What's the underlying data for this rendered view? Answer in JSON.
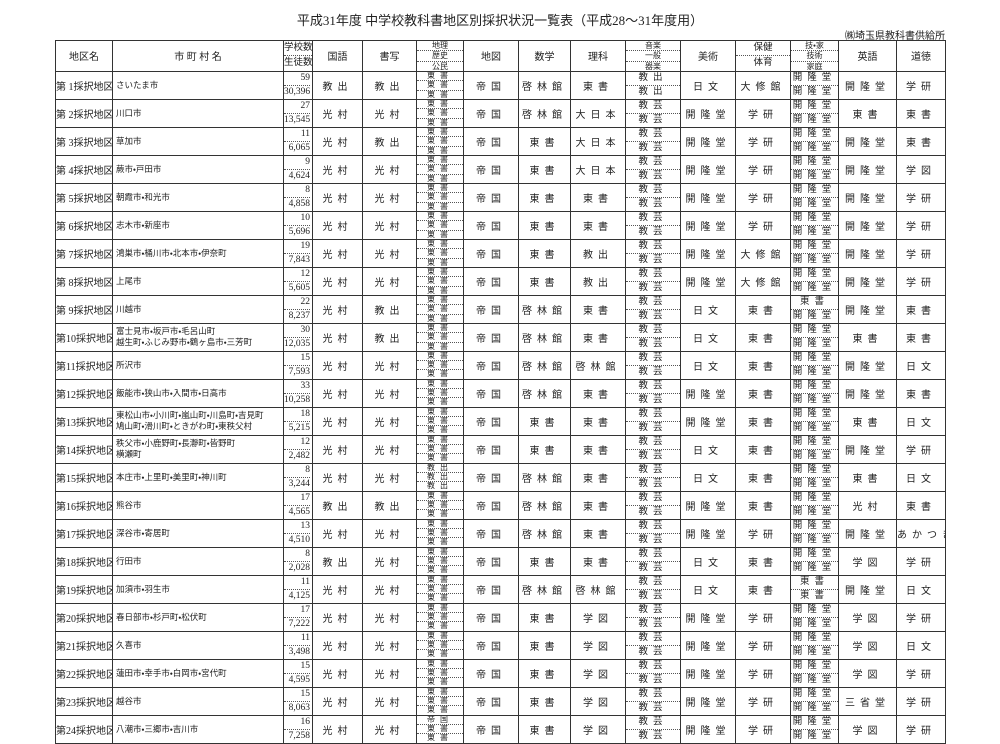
{
  "header": {
    "title": "平成31年度 中学校教科書地区別採択状況一覧表（平成28～31年度用）",
    "publisher": "㈱埼玉県教科書供給所",
    "columns": {
      "district": "地区名",
      "municipalities": "市 町 村 名",
      "schools": "学校数",
      "students": "生徒数",
      "japanese": "国語",
      "calligraphy": "書写",
      "social": [
        "地理",
        "歴史",
        "公民"
      ],
      "atlas": "地図",
      "math": "数学",
      "science": "理科",
      "music": "音楽",
      "music_sub": [
        "一般",
        "器楽"
      ],
      "art": "美術",
      "pe": [
        "保健",
        "体育"
      ],
      "tech_home": "技・家",
      "tech_home_sub": [
        "技術",
        "家庭"
      ],
      "english": "英語",
      "ethics": "道徳"
    }
  },
  "rows": [
    [
      "第 1採択地区",
      [
        "さいたま市"
      ],
      "59",
      "30,396",
      "教出",
      "教出",
      [
        "東書",
        "東書",
        "東書"
      ],
      "帝国",
      "啓林館",
      "東書",
      [
        "教出",
        "教出"
      ],
      "日文",
      "大修館",
      [
        "開隆堂",
        "開隆堂"
      ],
      "開隆堂",
      "学研"
    ],
    [
      "第 2採択地区",
      [
        "川口市"
      ],
      "27",
      "13,545",
      "光村",
      "光村",
      [
        "東書",
        "東書",
        "東書"
      ],
      "帝国",
      "啓林館",
      "大日本",
      [
        "教芸",
        "教芸"
      ],
      "開隆堂",
      "学研",
      [
        "開隆堂",
        "開隆堂"
      ],
      "東書",
      "東書"
    ],
    [
      "第 3採択地区",
      [
        "草加市"
      ],
      "11",
      "6,065",
      "光村",
      "教出",
      [
        "東書",
        "東書",
        "東書"
      ],
      "帝国",
      "東書",
      "大日本",
      [
        "教芸",
        "教芸"
      ],
      "開隆堂",
      "学研",
      [
        "開隆堂",
        "開隆堂"
      ],
      "開隆堂",
      "東書"
    ],
    [
      "第 4採択地区",
      [
        "蕨市・戸田市"
      ],
      "9",
      "4,624",
      "光村",
      "光村",
      [
        "東書",
        "東書",
        "東書"
      ],
      "帝国",
      "東書",
      "大日本",
      [
        "教芸",
        "教芸"
      ],
      "開隆堂",
      "学研",
      [
        "開隆堂",
        "開隆堂"
      ],
      "開隆堂",
      "学図"
    ],
    [
      "第 5採択地区",
      [
        "朝霞市・和光市"
      ],
      "8",
      "4,858",
      "光村",
      "光村",
      [
        "東書",
        "東書",
        "東書"
      ],
      "帝国",
      "東書",
      "東書",
      [
        "教芸",
        "教芸"
      ],
      "開隆堂",
      "学研",
      [
        "開隆堂",
        "開隆堂"
      ],
      "開隆堂",
      "学研"
    ],
    [
      "第 6採択地区",
      [
        "志木市・新座市"
      ],
      "10",
      "5,696",
      "光村",
      "光村",
      [
        "東書",
        "東書",
        "東書"
      ],
      "帝国",
      "東書",
      "東書",
      [
        "教芸",
        "教芸"
      ],
      "開隆堂",
      "学研",
      [
        "開隆堂",
        "開隆堂"
      ],
      "開隆堂",
      "学研"
    ],
    [
      "第 7採択地区",
      [
        "鴻巣市・桶川市・北本市・伊奈町"
      ],
      "19",
      "7,843",
      "光村",
      "光村",
      [
        "東書",
        "東書",
        "東書"
      ],
      "帝国",
      "東書",
      "教出",
      [
        "教芸",
        "教芸"
      ],
      "開隆堂",
      "大修館",
      [
        "開隆堂",
        "開隆堂"
      ],
      "開隆堂",
      "学研"
    ],
    [
      "第 8採択地区",
      [
        "上尾市"
      ],
      "12",
      "5,605",
      "光村",
      "光村",
      [
        "東書",
        "東書",
        "東書"
      ],
      "帝国",
      "東書",
      "教出",
      [
        "教芸",
        "教芸"
      ],
      "開隆堂",
      "大修館",
      [
        "開隆堂",
        "開隆堂"
      ],
      "開隆堂",
      "学研"
    ],
    [
      "第 9採択地区",
      [
        "川越市"
      ],
      "22",
      "8,237",
      "光村",
      "教出",
      [
        "東書",
        "東書",
        "東書"
      ],
      "帝国",
      "啓林館",
      "東書",
      [
        "教芸",
        "教芸"
      ],
      "日文",
      "東書",
      [
        "東書",
        "開隆堂"
      ],
      "開隆堂",
      "東書"
    ],
    [
      "第10採択地区",
      [
        "富士見市・坂戸市・毛呂山町",
        "越生町・ふじみ野市・鶴ヶ島市・三芳町"
      ],
      "30",
      "12,035",
      "光村",
      "教出",
      [
        "東書",
        "東書",
        "東書"
      ],
      "帝国",
      "啓林館",
      "東書",
      [
        "教芸",
        "教芸"
      ],
      "日文",
      "東書",
      [
        "開隆堂",
        "開隆堂"
      ],
      "東書",
      "東書"
    ],
    [
      "第11採択地区",
      [
        "所沢市"
      ],
      "15",
      "7,593",
      "光村",
      "光村",
      [
        "東書",
        "東書",
        "東書"
      ],
      "帝国",
      "啓林館",
      "啓林館",
      [
        "教芸",
        "教芸"
      ],
      "日文",
      "東書",
      [
        "開隆堂",
        "開隆堂"
      ],
      "開隆堂",
      "日文"
    ],
    [
      "第12採択地区",
      [
        "飯能市・狭山市・入間市・日高市"
      ],
      "33",
      "10,258",
      "光村",
      "光村",
      [
        "東書",
        "東書",
        "東書"
      ],
      "帝国",
      "啓林館",
      "東書",
      [
        "教芸",
        "教芸"
      ],
      "開隆堂",
      "東書",
      [
        "開隆堂",
        "開隆堂"
      ],
      "開隆堂",
      "東書"
    ],
    [
      "第13採択地区",
      [
        "東松山市・小川町・嵐山町・川島町・吉見町",
        "鳩山町・滑川町・ときがわ町・東秩父村"
      ],
      "18",
      "5,215",
      "光村",
      "光村",
      [
        "東書",
        "東書",
        "東書"
      ],
      "帝国",
      "東書",
      "東書",
      [
        "教芸",
        "教芸"
      ],
      "開隆堂",
      "東書",
      [
        "開隆堂",
        "開隆堂"
      ],
      "東書",
      "日文"
    ],
    [
      "第14採択地区",
      [
        "秩父市・小鹿野町・長瀞町・皆野町",
        "横瀬町"
      ],
      "12",
      "2,482",
      "光村",
      "光村",
      [
        "東書",
        "東書",
        "東書"
      ],
      "帝国",
      "東書",
      "東書",
      [
        "教芸",
        "教芸"
      ],
      "日文",
      "東書",
      [
        "開隆堂",
        "開隆堂"
      ],
      "開隆堂",
      "学研"
    ],
    [
      "第15採択地区",
      [
        "本庄市・上里町・美里町・神川町"
      ],
      "8",
      "3,244",
      "光村",
      "光村",
      [
        "教出",
        "教出",
        "教出"
      ],
      "帝国",
      "啓林館",
      "東書",
      [
        "教芸",
        "教芸"
      ],
      "日文",
      "東書",
      [
        "開隆堂",
        "開隆堂"
      ],
      "東書",
      "日文"
    ],
    [
      "第16採択地区",
      [
        "熊谷市"
      ],
      "17",
      "4,565",
      "教出",
      "教出",
      [
        "東書",
        "東書",
        "東書"
      ],
      "帝国",
      "啓林館",
      "東書",
      [
        "教芸",
        "教芸"
      ],
      "開隆堂",
      "東書",
      [
        "開隆堂",
        "開隆堂"
      ],
      "光村",
      "東書"
    ],
    [
      "第17採択地区",
      [
        "深谷市・寄居町"
      ],
      "13",
      "4,510",
      "光村",
      "光村",
      [
        "東書",
        "東書",
        "東書"
      ],
      "帝国",
      "啓林館",
      "東書",
      [
        "教芸",
        "教芸"
      ],
      "開隆堂",
      "学研",
      [
        "開隆堂",
        "開隆堂"
      ],
      "開隆堂",
      "あかつき"
    ],
    [
      "第18採択地区",
      [
        "行田市"
      ],
      "8",
      "2,028",
      "教出",
      "光村",
      [
        "東書",
        "東書",
        "東書"
      ],
      "帝国",
      "東書",
      "東書",
      [
        "教芸",
        "教芸"
      ],
      "日文",
      "東書",
      [
        "開隆堂",
        "開隆堂"
      ],
      "学図",
      "学研"
    ],
    [
      "第19採択地区",
      [
        "加須市・羽生市"
      ],
      "11",
      "4,125",
      "光村",
      "光村",
      [
        "東書",
        "東書",
        "東書"
      ],
      "帝国",
      "啓林館",
      "啓林館",
      [
        "教芸",
        "教芸"
      ],
      "日文",
      "東書",
      [
        "東書",
        "東書"
      ],
      "開隆堂",
      "日文"
    ],
    [
      "第20採択地区",
      [
        "春日部市・杉戸町・松伏町"
      ],
      "17",
      "7,222",
      "光村",
      "光村",
      [
        "東書",
        "東書",
        "東書"
      ],
      "帝国",
      "東書",
      "学図",
      [
        "教芸",
        "教芸"
      ],
      "開隆堂",
      "学研",
      [
        "開隆堂",
        "開隆堂"
      ],
      "学図",
      "学研"
    ],
    [
      "第21採択地区",
      [
        "久喜市"
      ],
      "11",
      "3,498",
      "光村",
      "光村",
      [
        "東書",
        "東書",
        "東書"
      ],
      "帝国",
      "東書",
      "学図",
      [
        "教芸",
        "教芸"
      ],
      "開隆堂",
      "学研",
      [
        "開隆堂",
        "開隆堂"
      ],
      "学図",
      "日文"
    ],
    [
      "第22採択地区",
      [
        "蓮田市・幸手市・白岡市・宮代町"
      ],
      "15",
      "4,595",
      "光村",
      "光村",
      [
        "東書",
        "東書",
        "東書"
      ],
      "帝国",
      "東書",
      "学図",
      [
        "教芸",
        "教芸"
      ],
      "開隆堂",
      "学研",
      [
        "開隆堂",
        "開隆堂"
      ],
      "学図",
      "学研"
    ],
    [
      "第23採択地区",
      [
        "越谷市"
      ],
      "15",
      "8,063",
      "光村",
      "光村",
      [
        "東書",
        "東書",
        "東書"
      ],
      "帝国",
      "東書",
      "学図",
      [
        "教芸",
        "教芸"
      ],
      "開隆堂",
      "学研",
      [
        "開隆堂",
        "開隆堂"
      ],
      "三省堂",
      "学研"
    ],
    [
      "第24採択地区",
      [
        "八潮市・三郷市・吉川市"
      ],
      "16",
      "7,258",
      "光村",
      "光村",
      [
        "帝国",
        "東書",
        "東書"
      ],
      "帝国",
      "東書",
      "学図",
      [
        "教芸",
        "教芸"
      ],
      "開隆堂",
      "学研",
      [
        "開隆堂",
        "開隆堂"
      ],
      "学図",
      "学研"
    ]
  ]
}
